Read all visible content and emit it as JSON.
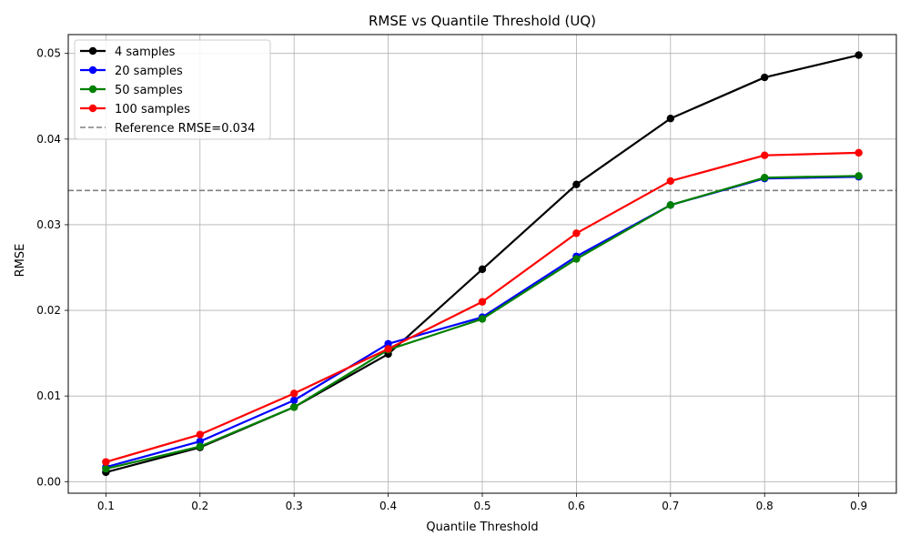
{
  "chart_data": {
    "type": "line",
    "title": "RMSE vs Quantile Threshold (UQ)",
    "xlabel": "Quantile Threshold",
    "ylabel": "RMSE",
    "x": [
      0.1,
      0.2,
      0.3,
      0.4,
      0.5,
      0.6,
      0.7,
      0.8,
      0.9
    ],
    "x_tick_labels": [
      "0.1",
      "0.2",
      "0.3",
      "0.4",
      "0.5",
      "0.6",
      "0.7",
      "0.8",
      "0.9"
    ],
    "xlim": [
      0.06,
      0.94
    ],
    "y_ticks": [
      0.0,
      0.01,
      0.02,
      0.03,
      0.04,
      0.05
    ],
    "y_tick_labels": [
      "0.00",
      "0.01",
      "0.02",
      "0.03",
      "0.04",
      "0.05"
    ],
    "ylim": [
      -0.00135,
      0.0522
    ],
    "grid": true,
    "legend_position": "top-left",
    "series": [
      {
        "name": "4 samples",
        "color": "#000000",
        "values": [
          0.0011,
          0.004,
          0.0087,
          0.0149,
          0.0248,
          0.0347,
          0.0424,
          0.0472,
          0.0498
        ]
      },
      {
        "name": "20 samples",
        "color": "#0000ff",
        "values": [
          0.0017,
          0.0047,
          0.0095,
          0.0161,
          0.0192,
          0.0263,
          0.0323,
          0.0354,
          0.0356
        ]
      },
      {
        "name": "50 samples",
        "color": "#008000",
        "values": [
          0.0015,
          0.0041,
          0.0087,
          0.0154,
          0.019,
          0.026,
          0.0323,
          0.0355,
          0.0357
        ]
      },
      {
        "name": "100 samples",
        "color": "#ff0000",
        "values": [
          0.0023,
          0.0055,
          0.0103,
          0.0155,
          0.021,
          0.029,
          0.0351,
          0.0381,
          0.0384
        ]
      }
    ],
    "reference_line": {
      "label": "Reference RMSE=0.034",
      "value": 0.034,
      "color": "#808080"
    }
  }
}
